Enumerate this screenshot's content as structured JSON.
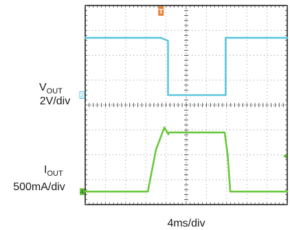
{
  "chart_data": {
    "type": "line",
    "x_divisions": 10,
    "y_divisions": 8,
    "xlabel": "4ms/div",
    "grid": true,
    "trigger_marker": "T",
    "series": [
      {
        "name": "VOUT",
        "label_main": "V",
        "label_sub": "OUT",
        "scale": "2V/div",
        "channel_marker": "2",
        "color": "#5bc8de",
        "x_div": [
          0,
          3.75,
          4.1,
          4.1,
          6.95,
          6.95,
          10
        ],
        "y_div": [
          6.7,
          6.7,
          6.58,
          4.4,
          4.4,
          6.7,
          6.7
        ]
      },
      {
        "name": "IOUT",
        "label_main": "I",
        "label_sub": "OUT",
        "scale": "500mA/div",
        "channel_marker": "4",
        "color": "#6ac73b",
        "x_div": [
          0,
          3.1,
          3.5,
          3.92,
          4.12,
          4.12,
          6.9,
          7.05,
          7.18,
          10
        ],
        "y_div": [
          0.52,
          0.52,
          2.2,
          3.1,
          2.82,
          2.9,
          2.9,
          2.0,
          0.52,
          0.52
        ]
      }
    ]
  }
}
